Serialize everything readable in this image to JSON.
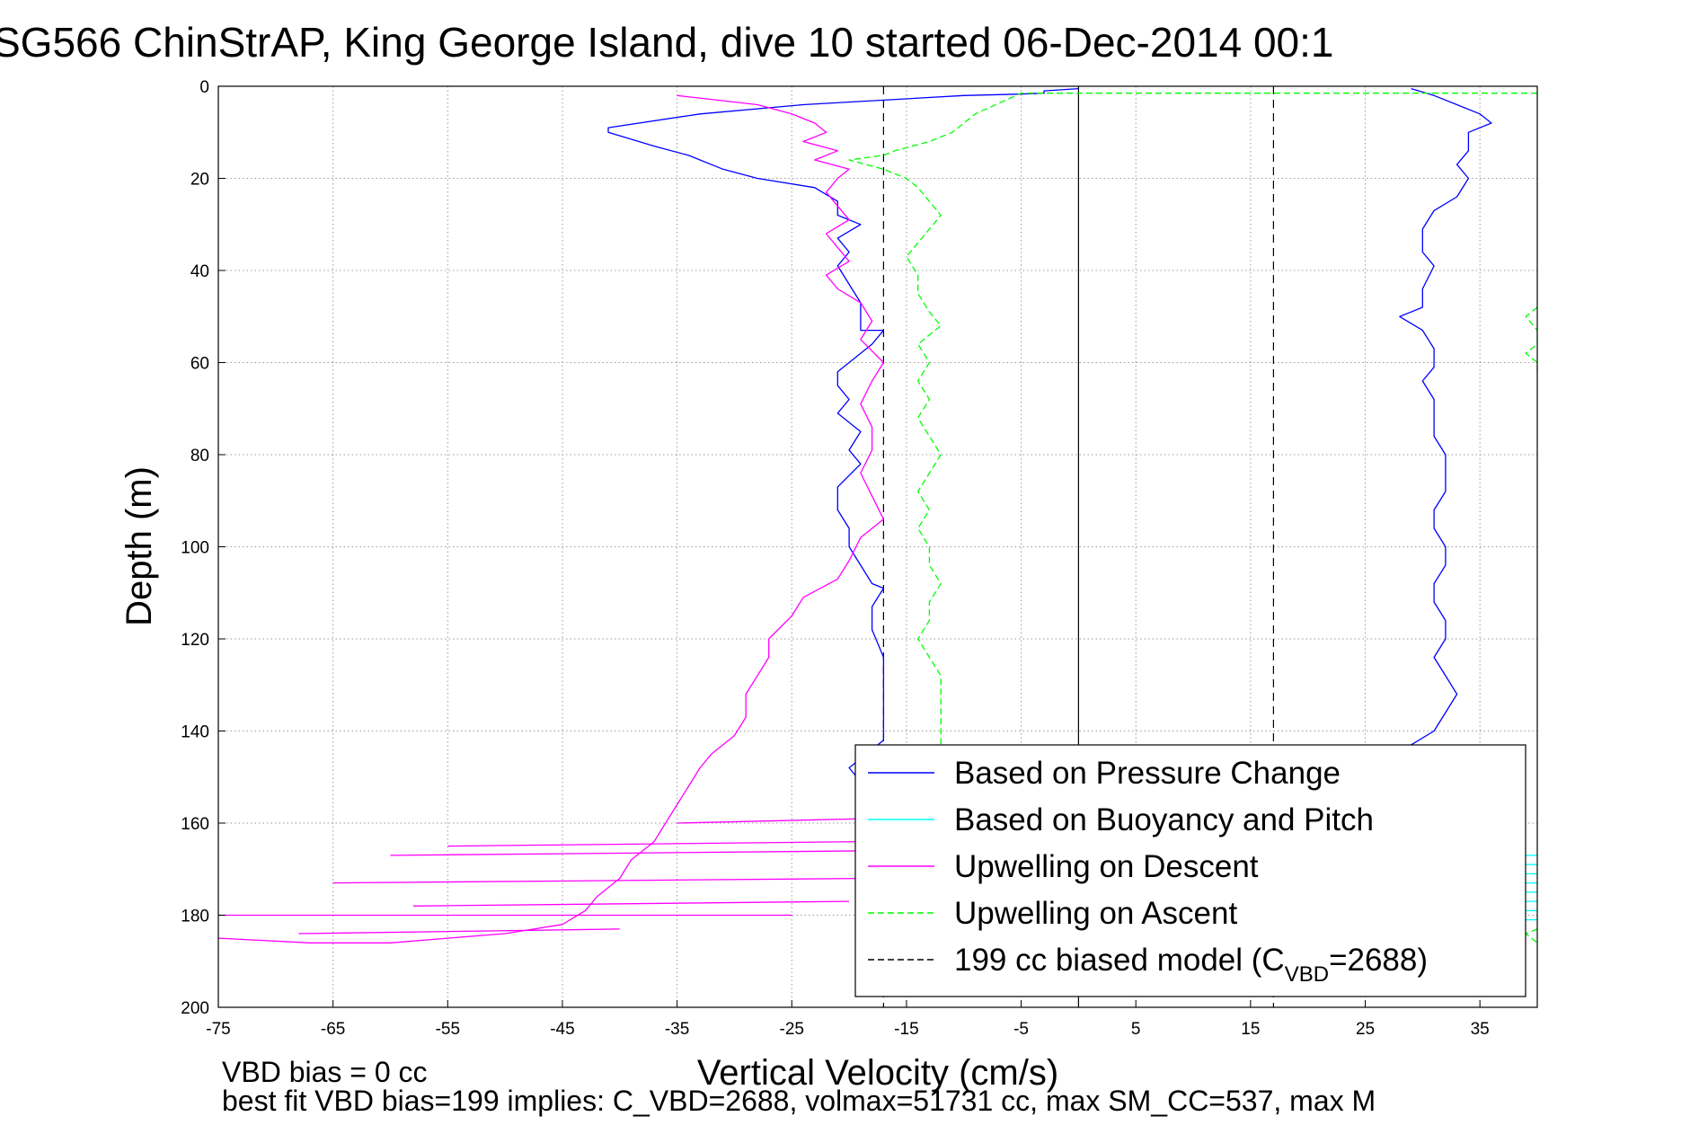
{
  "chart_data": {
    "type": "line",
    "title": "SG566 ChinStrAP, King George Island, dive 10 started 06-Dec-2014 00:1",
    "xlabel": "Vertical Velocity (cm/s)",
    "ylabel": "Depth (m)",
    "xlim": [
      -75,
      40
    ],
    "ylim": [
      0,
      200
    ],
    "y_reversed": true,
    "grid": true,
    "legend_placement": "bottom-right",
    "xticks": [
      "-75",
      "-65",
      "-55",
      "-45",
      "-35",
      "-25",
      "-15",
      "-5",
      "5",
      "15",
      "25",
      "35"
    ],
    "yticks": [
      "0",
      "20",
      "40",
      "60",
      "80",
      "100",
      "120",
      "140",
      "160",
      "180",
      "200"
    ],
    "legend": [
      {
        "label": "Based on Pressure Change",
        "color": "#0000ff",
        "dash": "solid",
        "sub": "",
        "suffix": ""
      },
      {
        "label": "Based on Buoyancy and Pitch",
        "color": "#00ffff",
        "dash": "solid",
        "sub": "",
        "suffix": ""
      },
      {
        "label": "Upwelling on Descent",
        "color": "#ff00ff",
        "dash": "solid",
        "sub": "",
        "suffix": ""
      },
      {
        "label": "Upwelling on Ascent",
        "color": "#00ff00",
        "dash": "dashed",
        "sub": "",
        "suffix": ""
      },
      {
        "label": "199 cc biased model (C",
        "color": "#000000",
        "dash": "dashed",
        "sub": "VBD",
        "suffix": "=2688)"
      }
    ],
    "reference_lines": [
      {
        "x": 0,
        "style": "solid",
        "color": "#000000"
      },
      {
        "x": -17,
        "style": "dashed",
        "color": "#000000"
      },
      {
        "x": 17,
        "style": "dashed",
        "color": "#000000"
      }
    ],
    "series": [
      {
        "name": "Based on Pressure Change",
        "color": "#0000ff",
        "dash": "solid",
        "segments": [
          [
            [
              0,
              0.5
            ],
            [
              -3,
              1
            ],
            [
              -3,
              1.5
            ],
            [
              -5,
              1.7
            ],
            [
              -10,
              2
            ],
            [
              -24,
              4
            ],
            [
              -33,
              6
            ],
            [
              -41,
              9
            ],
            [
              -41,
              10
            ],
            [
              -37,
              13
            ],
            [
              -34,
              15
            ],
            [
              -31,
              18
            ],
            [
              -28,
              20
            ],
            [
              -23,
              22
            ],
            [
              -21,
              25
            ],
            [
              -21,
              28
            ],
            [
              -19,
              30
            ],
            [
              -21,
              33
            ],
            [
              -20,
              36
            ],
            [
              -21,
              39
            ],
            [
              -20,
              43
            ],
            [
              -19,
              47
            ],
            [
              -19,
              50
            ],
            [
              -19,
              53
            ],
            [
              -17,
              53
            ],
            [
              -18,
              56
            ],
            [
              -21,
              62
            ],
            [
              -21,
              65
            ],
            [
              -20,
              68
            ],
            [
              -21,
              71
            ],
            [
              -19,
              75
            ],
            [
              -20,
              79
            ],
            [
              -19,
              82
            ],
            [
              -21,
              87
            ],
            [
              -21,
              92
            ],
            [
              -20,
              96
            ],
            [
              -20,
              100
            ],
            [
              -19,
              104
            ],
            [
              -18,
              108
            ],
            [
              -17,
              109
            ],
            [
              -18,
              113
            ],
            [
              -18,
              118
            ],
            [
              -17,
              124
            ],
            [
              -17,
              129
            ],
            [
              -17,
              135
            ],
            [
              -17,
              142
            ],
            [
              -20,
              148
            ],
            [
              -19,
              151
            ]
          ],
          [
            [
              29,
              0.5
            ],
            [
              31,
              2
            ],
            [
              33,
              4
            ],
            [
              35,
              6
            ],
            [
              36,
              8
            ],
            [
              34,
              10
            ],
            [
              34,
              14
            ],
            [
              33,
              17
            ],
            [
              34,
              20
            ],
            [
              33,
              24
            ],
            [
              31,
              27
            ],
            [
              30,
              31
            ],
            [
              30,
              36
            ],
            [
              31,
              39
            ],
            [
              30,
              44
            ],
            [
              30,
              48
            ],
            [
              28,
              50
            ],
            [
              30,
              53
            ],
            [
              31,
              57
            ],
            [
              31,
              61
            ],
            [
              30,
              64
            ],
            [
              31,
              68
            ],
            [
              31,
              72
            ],
            [
              31,
              76
            ],
            [
              32,
              80
            ],
            [
              32,
              84
            ],
            [
              32,
              88
            ],
            [
              31,
              92
            ],
            [
              31,
              96
            ],
            [
              32,
              100
            ],
            [
              32,
              104
            ],
            [
              31,
              108
            ],
            [
              31,
              112
            ],
            [
              32,
              116
            ],
            [
              32,
              120
            ],
            [
              31,
              124
            ],
            [
              32,
              128
            ],
            [
              33,
              132
            ],
            [
              32,
              136
            ],
            [
              31,
              140
            ],
            [
              29,
              143
            ]
          ]
        ]
      },
      {
        "name": "Based on Buoyancy and Pitch",
        "color": "#00ffff",
        "dash": "solid",
        "segments": [
          [
            [
              39,
              167
            ],
            [
              40,
              167
            ]
          ],
          [
            [
              39,
              169
            ],
            [
              40,
              169
            ]
          ],
          [
            [
              39,
              171
            ],
            [
              40,
              171
            ]
          ],
          [
            [
              39,
              173
            ],
            [
              40,
              173
            ]
          ],
          [
            [
              39,
              175
            ],
            [
              40,
              175
            ]
          ],
          [
            [
              39,
              177
            ],
            [
              40,
              177
            ]
          ],
          [
            [
              39,
              179
            ],
            [
              40,
              179
            ]
          ],
          [
            [
              39,
              181
            ],
            [
              40,
              181
            ]
          ]
        ]
      },
      {
        "name": "Upwelling on Descent",
        "color": "#ff00ff",
        "dash": "solid",
        "segments": [
          [
            [
              -35,
              2
            ],
            [
              -28,
              4
            ],
            [
              -25,
              6
            ],
            [
              -23,
              8
            ],
            [
              -22,
              10
            ],
            [
              -24,
              12
            ],
            [
              -21,
              14
            ],
            [
              -23,
              16
            ],
            [
              -20,
              18
            ],
            [
              -21,
              20
            ],
            [
              -22,
              23
            ],
            [
              -21,
              26
            ],
            [
              -20,
              29
            ],
            [
              -22,
              32
            ],
            [
              -21,
              35
            ],
            [
              -20,
              38
            ],
            [
              -22,
              41
            ],
            [
              -21,
              44
            ],
            [
              -19,
              47
            ],
            [
              -18,
              51
            ],
            [
              -19,
              55
            ],
            [
              -17,
              60
            ],
            [
              -18,
              64
            ],
            [
              -19,
              69
            ],
            [
              -18,
              74
            ],
            [
              -18,
              79
            ],
            [
              -19,
              84
            ],
            [
              -18,
              89
            ],
            [
              -17,
              94
            ],
            [
              -19,
              98
            ],
            [
              -20,
              103
            ],
            [
              -21,
              107
            ],
            [
              -24,
              111
            ],
            [
              -25,
              115
            ],
            [
              -27,
              120
            ],
            [
              -27,
              124
            ],
            [
              -28,
              128
            ],
            [
              -29,
              132
            ],
            [
              -29,
              137
            ],
            [
              -30,
              141
            ],
            [
              -32,
              145
            ],
            [
              -33,
              148
            ],
            [
              -34,
              152
            ],
            [
              -35,
              156
            ],
            [
              -36,
              160
            ],
            [
              -37,
              164
            ],
            [
              -39,
              168
            ],
            [
              -40,
              172
            ],
            [
              -42,
              176
            ],
            [
              -43,
              179
            ],
            [
              -45,
              182
            ],
            [
              -50,
              184
            ],
            [
              -55,
              185
            ],
            [
              -60,
              186
            ],
            [
              -67,
              186
            ],
            [
              -75,
              185
            ]
          ],
          [
            [
              -35,
              160
            ],
            [
              -18,
              159
            ]
          ],
          [
            [
              -55,
              165
            ],
            [
              -18,
              164
            ]
          ],
          [
            [
              -60,
              167
            ],
            [
              -18,
              166
            ]
          ],
          [
            [
              -65,
              173
            ],
            [
              -18,
              172
            ]
          ],
          [
            [
              -58,
              178
            ],
            [
              -20,
              177
            ]
          ],
          [
            [
              -75,
              180
            ],
            [
              -25,
              180
            ]
          ],
          [
            [
              -68,
              184
            ],
            [
              -40,
              183
            ]
          ]
        ]
      },
      {
        "name": "Upwelling on Ascent",
        "color": "#00ff00",
        "dash": "dashed",
        "segments": [
          [
            [
              40,
              1.5
            ],
            [
              -5,
              1.5
            ],
            [
              -9,
              6
            ],
            [
              -11,
              10
            ],
            [
              -13,
              12
            ],
            [
              -16,
              14
            ],
            [
              -17,
              15
            ],
            [
              -20,
              16
            ],
            [
              -17,
              18
            ],
            [
              -15,
              20
            ],
            [
              -14,
              22
            ],
            [
              -13,
              25
            ],
            [
              -12,
              28
            ],
            [
              -13,
              31
            ],
            [
              -14,
              34
            ],
            [
              -15,
              37
            ],
            [
              -14,
              41
            ],
            [
              -14,
              45
            ],
            [
              -13,
              49
            ],
            [
              -12,
              52
            ],
            [
              -14,
              56
            ],
            [
              -13,
              60
            ],
            [
              -14,
              64
            ],
            [
              -13,
              68
            ],
            [
              -14,
              72
            ],
            [
              -13,
              76
            ],
            [
              -12,
              80
            ],
            [
              -13,
              84
            ],
            [
              -14,
              88
            ],
            [
              -13,
              92
            ],
            [
              -14,
              96
            ],
            [
              -13,
              100
            ],
            [
              -13,
              104
            ],
            [
              -12,
              108
            ],
            [
              -13,
              112
            ],
            [
              -13,
              116
            ],
            [
              -14,
              120
            ],
            [
              -13,
              124
            ],
            [
              -12,
              128
            ],
            [
              -12,
              132
            ],
            [
              -12,
              136
            ],
            [
              -12,
              140
            ],
            [
              -12,
              144
            ]
          ],
          [
            [
              40,
              48
            ],
            [
              39,
              50
            ],
            [
              40,
              53
            ],
            [
              40,
              56
            ],
            [
              39,
              58
            ],
            [
              40,
              60
            ],
            [
              40,
              63
            ]
          ],
          [
            [
              40,
              183
            ],
            [
              39,
              184
            ],
            [
              40,
              186
            ]
          ]
        ]
      }
    ],
    "footnote_lines": [
      "VBD bias = 0 cc",
      "best fit VBD bias=199 implies: C_VBD=2688, volmax=51731 cc, max SM_CC=537, max M"
    ]
  }
}
